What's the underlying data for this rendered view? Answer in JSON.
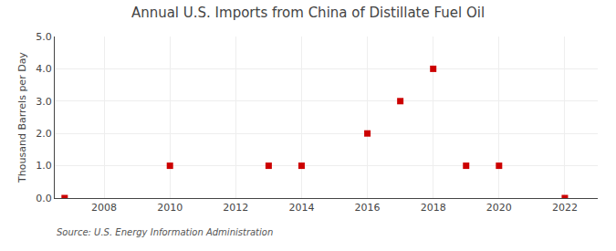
{
  "chart_data": {
    "type": "scatter",
    "title": "Annual U.S. Imports from China of Distillate Fuel Oil",
    "ylabel": "Thousand Barrels per Day",
    "annotations": [
      "Source: U.S. Energy Information Administration"
    ],
    "x": [
      2006.8,
      2010,
      2013,
      2014,
      2016,
      2017,
      2018,
      2019,
      2020,
      2022
    ],
    "values": [
      0.0,
      1.0,
      1.0,
      1.0,
      2.0,
      3.0,
      4.0,
      1.0,
      1.0,
      0.0
    ],
    "color": "#cc0000",
    "marker": "square",
    "xlim": [
      2006.5,
      2023.0
    ],
    "xticks": [
      2008,
      2010,
      2012,
      2014,
      2016,
      2018,
      2020,
      2022
    ],
    "ylim": [
      0.0,
      5.0
    ],
    "yticks": [
      {
        "value": 0.0,
        "label": "0.0"
      },
      {
        "value": 1.0,
        "label": "1.0"
      },
      {
        "value": 2.0,
        "label": "2.0"
      },
      {
        "value": 3.0,
        "label": "3.0"
      },
      {
        "value": 4.0,
        "label": "4.0"
      },
      {
        "value": 5.0,
        "label": "5.0"
      }
    ],
    "grid": true
  }
}
